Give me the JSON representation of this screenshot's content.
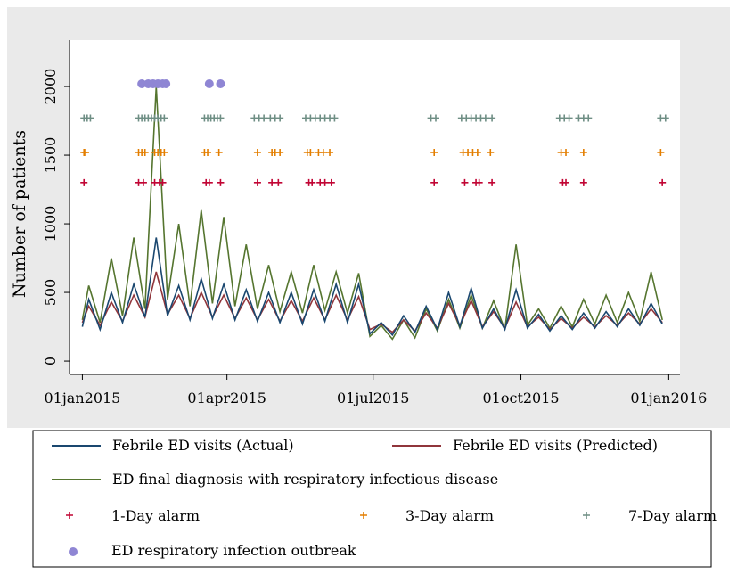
{
  "chart_data": {
    "type": "line",
    "y_label": "Number of patients",
    "xlim": [
      "2014-12-24",
      "2016-01-08"
    ],
    "xticks": [
      {
        "value": "2015-01-01",
        "label": "01jan2015"
      },
      {
        "value": "2015-04-01",
        "label": "01apr2015"
      },
      {
        "value": "2015-07-01",
        "label": "01jul2015"
      },
      {
        "value": "2015-10-01",
        "label": "01oct2015"
      },
      {
        "value": "2016-01-01",
        "label": "01jan2016"
      }
    ],
    "ylim": [
      -97,
      2338
    ],
    "yticks": [
      0,
      500,
      1000,
      1500,
      2000
    ],
    "x": [
      "2015-01-01",
      "2015-01-05",
      "2015-01-12",
      "2015-01-19",
      "2015-01-26",
      "2015-02-02",
      "2015-02-09",
      "2015-02-16",
      "2015-02-23",
      "2015-03-02",
      "2015-03-09",
      "2015-03-16",
      "2015-03-23",
      "2015-03-30",
      "2015-04-06",
      "2015-04-13",
      "2015-04-20",
      "2015-04-27",
      "2015-05-04",
      "2015-05-11",
      "2015-05-18",
      "2015-05-25",
      "2015-06-01",
      "2015-06-08",
      "2015-06-15",
      "2015-06-22",
      "2015-06-29",
      "2015-07-06",
      "2015-07-13",
      "2015-07-20",
      "2015-07-27",
      "2015-08-03",
      "2015-08-10",
      "2015-08-17",
      "2015-08-24",
      "2015-08-31",
      "2015-09-07",
      "2015-09-14",
      "2015-09-21",
      "2015-09-28",
      "2015-10-05",
      "2015-10-12",
      "2015-10-19",
      "2015-10-26",
      "2015-11-02",
      "2015-11-09",
      "2015-11-16",
      "2015-11-23",
      "2015-11-30",
      "2015-12-07",
      "2015-12-14",
      "2015-12-21",
      "2015-12-28"
    ],
    "series": [
      {
        "name": "Febrile ED visits (Actual)",
        "color": "#1a476f",
        "marker": "line",
        "values": [
          250,
          450,
          230,
          500,
          280,
          560,
          320,
          900,
          330,
          550,
          300,
          600,
          310,
          560,
          300,
          520,
          290,
          500,
          280,
          500,
          270,
          520,
          290,
          560,
          280,
          560,
          200,
          280,
          190,
          330,
          210,
          400,
          230,
          500,
          250,
          530,
          240,
          380,
          230,
          520,
          240,
          340,
          220,
          330,
          230,
          350,
          240,
          360,
          250,
          380,
          260,
          420,
          270
        ]
      },
      {
        "name": "Febrile ED visits (Predicted)",
        "color": "#90353b",
        "marker": "line",
        "values": [
          280,
          400,
          260,
          430,
          290,
          480,
          320,
          650,
          340,
          480,
          310,
          500,
          320,
          480,
          310,
          460,
          300,
          450,
          290,
          440,
          290,
          460,
          300,
          480,
          300,
          470,
          230,
          270,
          210,
          300,
          220,
          350,
          240,
          420,
          260,
          440,
          250,
          360,
          240,
          430,
          250,
          320,
          230,
          310,
          240,
          320,
          250,
          330,
          260,
          350,
          270,
          380,
          280
        ]
      },
      {
        "name": "ED final diagnosis with respiratory infectious disease",
        "color": "#55752f",
        "marker": "line",
        "values": [
          300,
          550,
          280,
          750,
          330,
          900,
          380,
          2000,
          450,
          1000,
          400,
          1100,
          420,
          1050,
          400,
          850,
          380,
          700,
          360,
          650,
          350,
          700,
          370,
          650,
          350,
          640,
          180,
          260,
          160,
          300,
          170,
          380,
          220,
          450,
          240,
          480,
          240,
          440,
          230,
          850,
          260,
          380,
          240,
          400,
          250,
          450,
          270,
          480,
          280,
          500,
          290,
          650,
          300
        ]
      },
      {
        "name": "1-Day alarm",
        "color": "#c10534",
        "marker": "plus",
        "x": [
          "2015-01-02",
          "2015-02-05",
          "2015-02-08",
          "2015-02-15",
          "2015-02-18",
          "2015-02-20",
          "2015-03-19",
          "2015-03-21",
          "2015-03-28",
          "2015-04-20",
          "2015-04-29",
          "2015-05-03",
          "2015-05-22",
          "2015-05-24",
          "2015-05-29",
          "2015-06-01",
          "2015-06-05",
          "2015-08-08",
          "2015-08-27",
          "2015-09-03",
          "2015-09-05",
          "2015-09-13",
          "2015-10-27",
          "2015-10-29",
          "2015-11-09",
          "2015-12-28"
        ],
        "values": [
          1300,
          1300,
          1300,
          1300,
          1300,
          1300,
          1300,
          1300,
          1300,
          1300,
          1300,
          1300,
          1300,
          1300,
          1300,
          1300,
          1300,
          1300,
          1300,
          1300,
          1300,
          1300,
          1300,
          1300,
          1300,
          1300
        ]
      },
      {
        "name": "3-Day alarm",
        "color": "#e37e00",
        "marker": "plus",
        "x": [
          "2015-01-02",
          "2015-01-03",
          "2015-02-05",
          "2015-02-07",
          "2015-02-09",
          "2015-02-15",
          "2015-02-17",
          "2015-02-19",
          "2015-02-21",
          "2015-03-18",
          "2015-03-20",
          "2015-03-27",
          "2015-04-20",
          "2015-04-29",
          "2015-05-01",
          "2015-05-04",
          "2015-05-21",
          "2015-05-23",
          "2015-05-28",
          "2015-05-31",
          "2015-06-04",
          "2015-08-08",
          "2015-08-26",
          "2015-08-29",
          "2015-09-01",
          "2015-09-04",
          "2015-09-12",
          "2015-10-26",
          "2015-10-29",
          "2015-11-09",
          "2015-12-27"
        ],
        "values": [
          1520,
          1520,
          1520,
          1520,
          1520,
          1520,
          1520,
          1520,
          1520,
          1520,
          1520,
          1520,
          1520,
          1520,
          1520,
          1520,
          1520,
          1520,
          1520,
          1520,
          1520,
          1520,
          1520,
          1520,
          1520,
          1520,
          1520,
          1520,
          1520,
          1520,
          1520
        ]
      },
      {
        "name": "7-Day alarm",
        "color": "#6e8e84",
        "marker": "plus",
        "x": [
          "2015-01-02",
          "2015-01-04",
          "2015-01-06",
          "2015-02-05",
          "2015-02-07",
          "2015-02-09",
          "2015-02-11",
          "2015-02-13",
          "2015-02-15",
          "2015-02-17",
          "2015-02-19",
          "2015-02-21",
          "2015-03-18",
          "2015-03-20",
          "2015-03-22",
          "2015-03-24",
          "2015-03-26",
          "2015-03-28",
          "2015-04-18",
          "2015-04-21",
          "2015-04-24",
          "2015-04-28",
          "2015-05-01",
          "2015-05-04",
          "2015-05-20",
          "2015-05-23",
          "2015-05-26",
          "2015-05-29",
          "2015-06-01",
          "2015-06-04",
          "2015-06-07",
          "2015-08-06",
          "2015-08-09",
          "2015-08-25",
          "2015-08-28",
          "2015-08-31",
          "2015-09-03",
          "2015-09-06",
          "2015-09-09",
          "2015-09-13",
          "2015-10-25",
          "2015-10-28",
          "2015-10-31",
          "2015-11-06",
          "2015-11-09",
          "2015-11-12",
          "2015-12-27",
          "2015-12-30"
        ],
        "values": [
          1770,
          1770,
          1770,
          1770,
          1770,
          1770,
          1770,
          1770,
          1770,
          1770,
          1770,
          1770,
          1770,
          1770,
          1770,
          1770,
          1770,
          1770,
          1770,
          1770,
          1770,
          1770,
          1770,
          1770,
          1770,
          1770,
          1770,
          1770,
          1770,
          1770,
          1770,
          1770,
          1770,
          1770,
          1770,
          1770,
          1770,
          1770,
          1770,
          1770,
          1770,
          1770,
          1770,
          1770,
          1770,
          1770,
          1770,
          1770
        ]
      },
      {
        "name": "ED respiratory infection outbreak",
        "color": "#8f86d4",
        "marker": "circle",
        "x": [
          "2015-02-07",
          "2015-02-11",
          "2015-02-14",
          "2015-02-17",
          "2015-02-20",
          "2015-02-22",
          "2015-03-21",
          "2015-03-28"
        ],
        "values": [
          2020,
          2020,
          2020,
          2020,
          2020,
          2020,
          2020,
          2020
        ]
      }
    ]
  }
}
